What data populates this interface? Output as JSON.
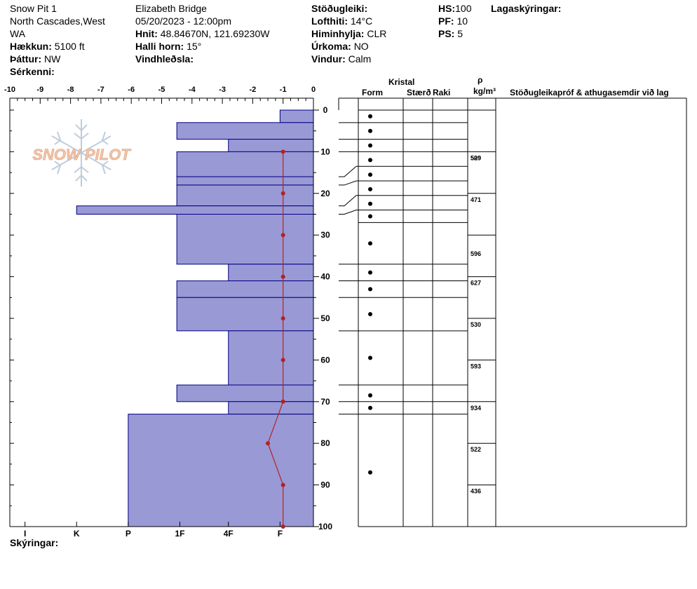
{
  "header": {
    "title": "Snow Pit 1",
    "region_line1": "North Cascades,West",
    "region_line2": "WA",
    "elevation_label": "Hækkun:",
    "elevation_value": "5100 ft",
    "aspect_label": "Þáttur:",
    "aspect_value": "NW",
    "features_label": "Sérkenni:",
    "observer": "Elizabeth  Bridge",
    "datetime": "05/20/2023 - 12:00pm",
    "coords_label": "Hnit:",
    "coords_value": "48.84670N, 121.69230W",
    "slope_label": "Halli horn:",
    "slope_value": "15°",
    "wind_loading_label": "Vindhleðsla:",
    "stability_label": "Stöðugleiki:",
    "air_temp_label": "Lofthiti:",
    "air_temp_value": "14°C",
    "sky_label": "Himinhylja:",
    "sky_value": "CLR",
    "precip_label": "Úrkoma:",
    "precip_value": "NO",
    "wind_label": "Vindur:",
    "wind_value": "Calm",
    "hs_label": "HS:",
    "hs_value": "100",
    "pf_label": "PF:",
    "pf_value": "10",
    "ps_label": "PS:",
    "ps_value": "5",
    "layers_label": "Lagaskýringar:"
  },
  "footer": {
    "notes_label": "Skýringar:"
  },
  "watermark": {
    "text": "SNOW PILOT",
    "icon": "snowflake-icon"
  },
  "table_headers": {
    "crystal": "Kristal",
    "form": "Form",
    "size": "Stærð",
    "moisture": "Raki",
    "rho": "ρ",
    "density_unit": "kg/m³",
    "tests": "Stöðugleikapróf & athugasemdir við lag"
  },
  "colors": {
    "hardness_fill": "#9999d6",
    "hardness_stroke": "#000080",
    "temp_line": "#b22222"
  },
  "chart_data": {
    "type": "bar",
    "title": "",
    "xlabel": "",
    "ylabel": "",
    "temp_axis": {
      "ticks": [
        "-10",
        "-9",
        "-8",
        "-7",
        "-6",
        "-5",
        "-4",
        "-3",
        "-2",
        "-1",
        "0"
      ],
      "range": [
        -10,
        0
      ]
    },
    "hardness_axis": {
      "ticks": [
        "I",
        "K",
        "P",
        "1F",
        "4F",
        "F"
      ]
    },
    "depth_axis": {
      "ticks": [
        "0",
        "10",
        "20",
        "30",
        "40",
        "50",
        "60",
        "70",
        "80",
        "90",
        "100"
      ],
      "range": [
        0,
        100
      ],
      "inverted": true
    },
    "hardness_layers": [
      {
        "top": 0,
        "bottom": 3,
        "value": -1.1
      },
      {
        "top": 3,
        "bottom": 7,
        "value": -4.5
      },
      {
        "top": 7,
        "bottom": 10,
        "value": -2.8
      },
      {
        "top": 10,
        "bottom": 16,
        "value": -4.5
      },
      {
        "top": 16,
        "bottom": 18,
        "value": -4.5
      },
      {
        "top": 18,
        "bottom": 23,
        "value": -4.5
      },
      {
        "top": 23,
        "bottom": 25,
        "value": -7.8
      },
      {
        "top": 25,
        "bottom": 37,
        "value": -4.5
      },
      {
        "top": 37,
        "bottom": 41,
        "value": -2.8
      },
      {
        "top": 41,
        "bottom": 45,
        "value": -4.5
      },
      {
        "top": 45,
        "bottom": 53,
        "value": -4.5
      },
      {
        "top": 53,
        "bottom": 66,
        "value": -2.8
      },
      {
        "top": 66,
        "bottom": 70,
        "value": -4.5
      },
      {
        "top": 70,
        "bottom": 73,
        "value": -2.8
      },
      {
        "top": 73,
        "bottom": 100,
        "value": -6.1
      }
    ],
    "temperature_profile": [
      {
        "depth": 10,
        "temp": -1.0
      },
      {
        "depth": 20,
        "temp": -1.0
      },
      {
        "depth": 30,
        "temp": -1.0
      },
      {
        "depth": 40,
        "temp": -1.0
      },
      {
        "depth": 50,
        "temp": -1.0
      },
      {
        "depth": 60,
        "temp": -1.0
      },
      {
        "depth": 70,
        "temp": -1.0
      },
      {
        "depth": 80,
        "temp": -1.5
      },
      {
        "depth": 90,
        "temp": -1.0
      },
      {
        "depth": 100,
        "temp": -1.0
      }
    ],
    "layer_boundaries": [
      0,
      3,
      7,
      10,
      13.5,
      17,
      20.5,
      24,
      27,
      37,
      41,
      45,
      53,
      66,
      70,
      73
    ],
    "left_boundaries": [
      0,
      3,
      7,
      10,
      16,
      18,
      23,
      25,
      37,
      41,
      45,
      53,
      66,
      70,
      73
    ],
    "crystal_dots": [
      1.5,
      5,
      8.5,
      12,
      15.5,
      19,
      22.5,
      25.5,
      32,
      39,
      43,
      49,
      59.5,
      68.5,
      71.5,
      87
    ],
    "density_samples": [
      {
        "depth": 10,
        "label": "509",
        "value": 509
      },
      {
        "depth": 10,
        "label": "529",
        "value": 529
      },
      {
        "depth": 20,
        "label": "471",
        "value": 471
      },
      {
        "depth": 33,
        "label": "596",
        "value": 596
      },
      {
        "depth": 40,
        "label": "627",
        "value": 627
      },
      {
        "depth": 50,
        "label": "530",
        "value": 530
      },
      {
        "depth": 60,
        "label": "593",
        "value": 593
      },
      {
        "depth": 70,
        "label": "934",
        "value": 934
      },
      {
        "depth": 80,
        "label": "522",
        "value": 522
      },
      {
        "depth": 90,
        "label": "436",
        "value": 436
      }
    ]
  }
}
